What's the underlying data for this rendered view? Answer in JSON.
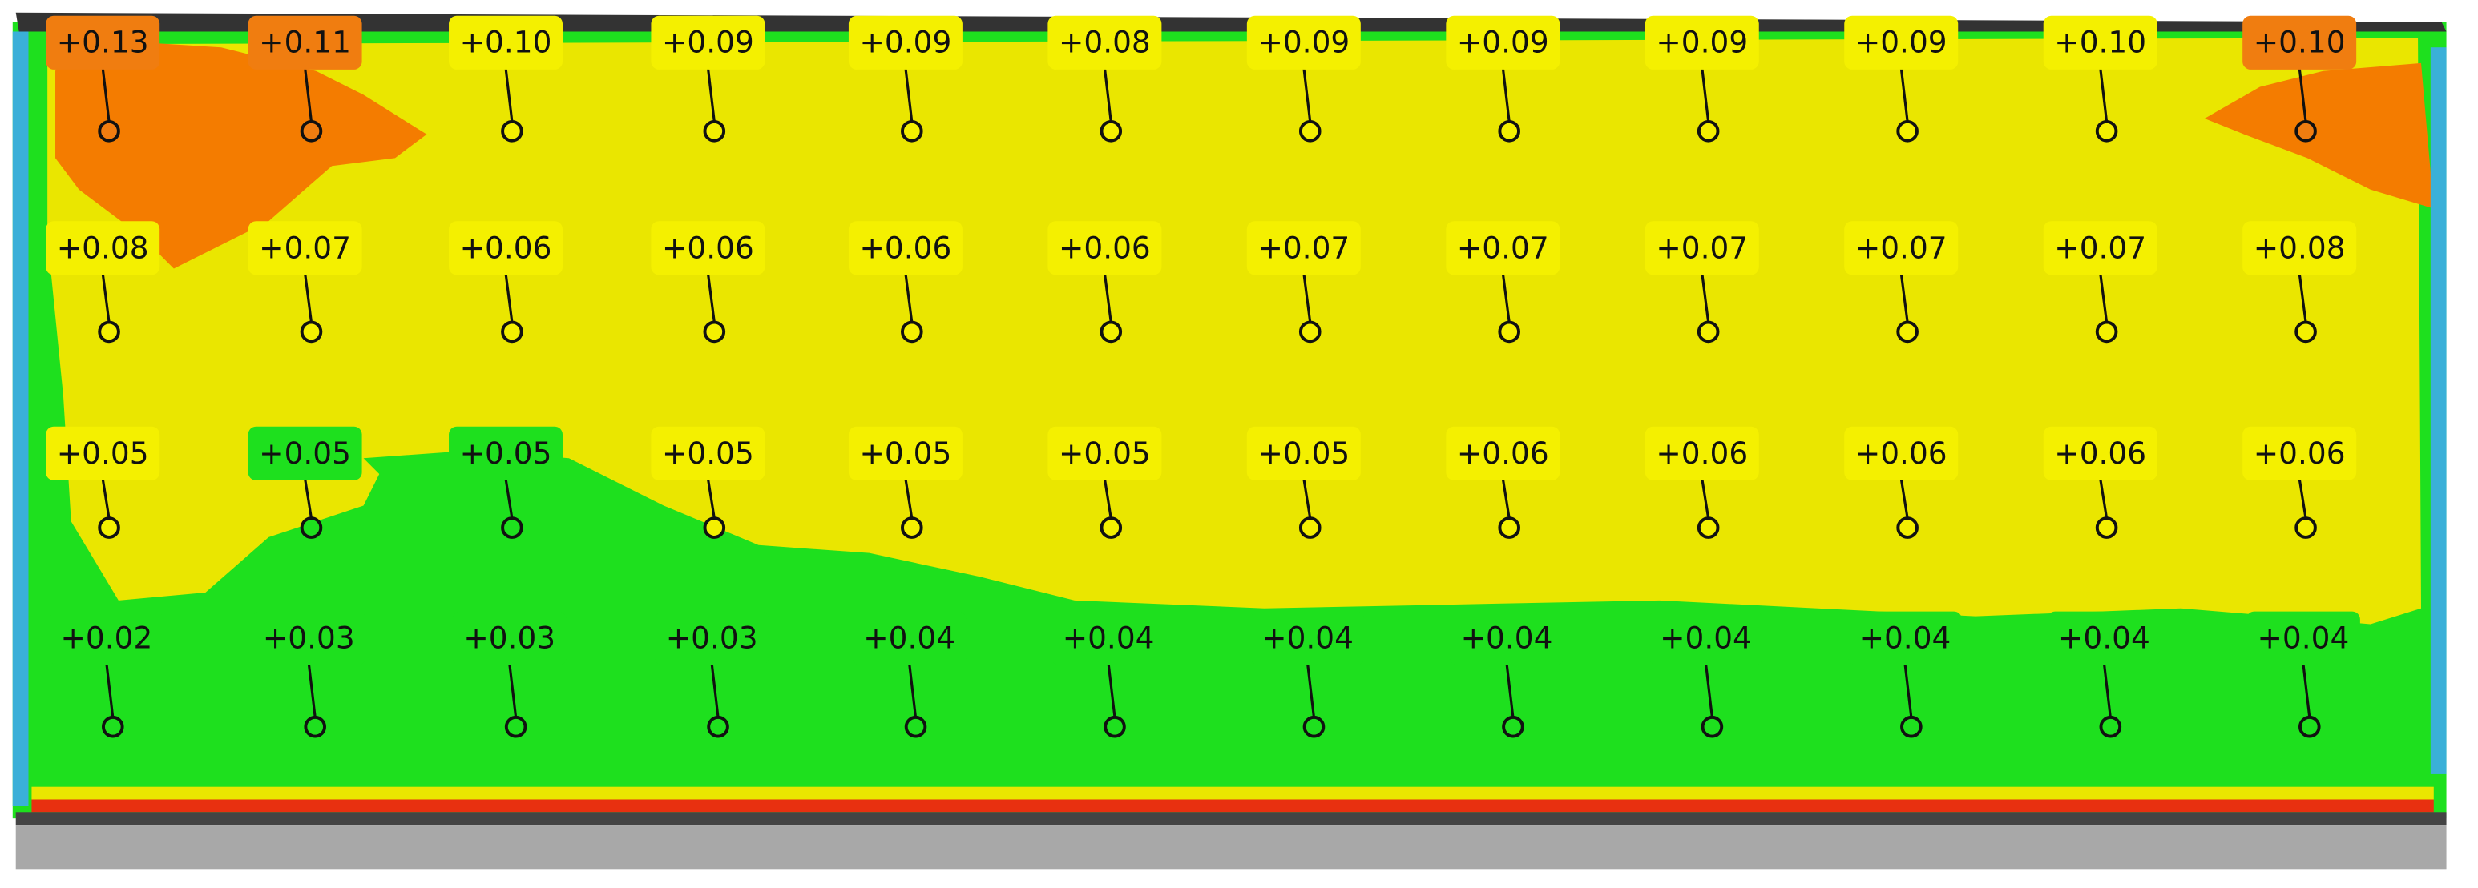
{
  "markers": [
    [
      {
        "text": "+0.13",
        "color": "#f07d10"
      },
      {
        "text": "+0.11",
        "color": "#f07d10"
      },
      {
        "text": "+0.10",
        "color": "#f4f000"
      },
      {
        "text": "+0.09",
        "color": "#f4f000"
      },
      {
        "text": "+0.09",
        "color": "#f4f000"
      },
      {
        "text": "+0.08",
        "color": "#f4f000"
      },
      {
        "text": "+0.09",
        "color": "#f4f000"
      },
      {
        "text": "+0.09",
        "color": "#f4f000"
      },
      {
        "text": "+0.09",
        "color": "#f4f000"
      },
      {
        "text": "+0.09",
        "color": "#f4f000"
      },
      {
        "text": "+0.10",
        "color": "#f4f000"
      },
      {
        "text": "+0.10",
        "color": "#f07d10"
      }
    ],
    [
      {
        "text": "+0.08",
        "color": "#f4f000"
      },
      {
        "text": "+0.07",
        "color": "#f4f000"
      },
      {
        "text": "+0.06",
        "color": "#f4f000"
      },
      {
        "text": "+0.06",
        "color": "#f4f000"
      },
      {
        "text": "+0.06",
        "color": "#f4f000"
      },
      {
        "text": "+0.06",
        "color": "#f4f000"
      },
      {
        "text": "+0.07",
        "color": "#f4f000"
      },
      {
        "text": "+0.07",
        "color": "#f4f000"
      },
      {
        "text": "+0.07",
        "color": "#f4f000"
      },
      {
        "text": "+0.07",
        "color": "#f4f000"
      },
      {
        "text": "+0.07",
        "color": "#f4f000"
      },
      {
        "text": "+0.08",
        "color": "#f4f000"
      }
    ],
    [
      {
        "text": "+0.05",
        "color": "#f4f000"
      },
      {
        "text": "+0.05",
        "color": "#1ee01e"
      },
      {
        "text": "+0.05",
        "color": "#1ee01e"
      },
      {
        "text": "+0.05",
        "color": "#f4f000"
      },
      {
        "text": "+0.05",
        "color": "#f4f000"
      },
      {
        "text": "+0.05",
        "color": "#f4f000"
      },
      {
        "text": "+0.05",
        "color": "#f4f000"
      },
      {
        "text": "+0.06",
        "color": "#f4f000"
      },
      {
        "text": "+0.06",
        "color": "#f4f000"
      },
      {
        "text": "+0.06",
        "color": "#f4f000"
      },
      {
        "text": "+0.06",
        "color": "#f4f000"
      },
      {
        "text": "+0.06",
        "color": "#f4f000"
      }
    ],
    [
      {
        "text": "+0.02",
        "color": "#1ee01e"
      },
      {
        "text": "+0.03",
        "color": "#1ee01e"
      },
      {
        "text": "+0.03",
        "color": "#1ee01e"
      },
      {
        "text": "+0.03",
        "color": "#1ee01e"
      },
      {
        "text": "+0.04",
        "color": "#1ee01e"
      },
      {
        "text": "+0.04",
        "color": "#1ee01e"
      },
      {
        "text": "+0.04",
        "color": "#1ee01e"
      },
      {
        "text": "+0.04",
        "color": "#1ee01e"
      },
      {
        "text": "+0.04",
        "color": "#1ee01e"
      },
      {
        "text": "+0.04",
        "color": "#1ee01e"
      },
      {
        "text": "+0.04",
        "color": "#1ee01e"
      },
      {
        "text": "+0.04",
        "color": "#1ee01e"
      }
    ]
  ]
}
